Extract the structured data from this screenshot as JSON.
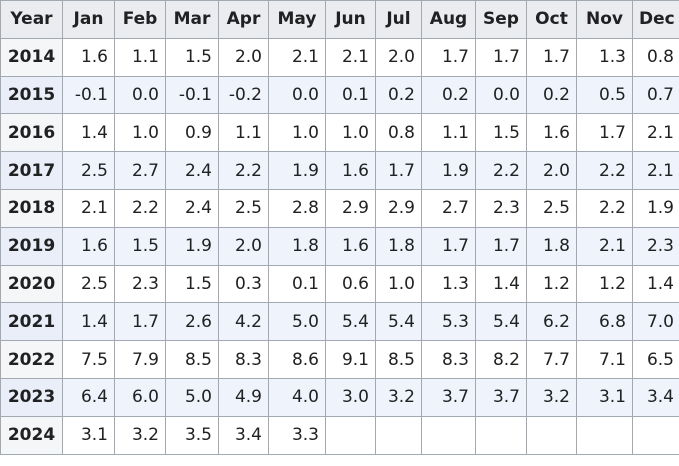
{
  "table": {
    "header": [
      "Year",
      "Jan",
      "Feb",
      "Mar",
      "Apr",
      "May",
      "Jun",
      "Jul",
      "Aug",
      "Sep",
      "Oct",
      "Nov",
      "Dec"
    ],
    "rows": [
      [
        "2014",
        "1.6",
        "1.1",
        "1.5",
        "2.0",
        "2.1",
        "2.1",
        "2.0",
        "1.7",
        "1.7",
        "1.7",
        "1.3",
        "0.8"
      ],
      [
        "2015",
        "-0.1",
        "0.0",
        "-0.1",
        "-0.2",
        "0.0",
        "0.1",
        "0.2",
        "0.2",
        "0.0",
        "0.2",
        "0.5",
        "0.7"
      ],
      [
        "2016",
        "1.4",
        "1.0",
        "0.9",
        "1.1",
        "1.0",
        "1.0",
        "0.8",
        "1.1",
        "1.5",
        "1.6",
        "1.7",
        "2.1"
      ],
      [
        "2017",
        "2.5",
        "2.7",
        "2.4",
        "2.2",
        "1.9",
        "1.6",
        "1.7",
        "1.9",
        "2.2",
        "2.0",
        "2.2",
        "2.1"
      ],
      [
        "2018",
        "2.1",
        "2.2",
        "2.4",
        "2.5",
        "2.8",
        "2.9",
        "2.9",
        "2.7",
        "2.3",
        "2.5",
        "2.2",
        "1.9"
      ],
      [
        "2019",
        "1.6",
        "1.5",
        "1.9",
        "2.0",
        "1.8",
        "1.6",
        "1.8",
        "1.7",
        "1.7",
        "1.8",
        "2.1",
        "2.3"
      ],
      [
        "2020",
        "2.5",
        "2.3",
        "1.5",
        "0.3",
        "0.1",
        "0.6",
        "1.0",
        "1.3",
        "1.4",
        "1.2",
        "1.2",
        "1.4"
      ],
      [
        "2021",
        "1.4",
        "1.7",
        "2.6",
        "4.2",
        "5.0",
        "5.4",
        "5.4",
        "5.3",
        "5.4",
        "6.2",
        "6.8",
        "7.0"
      ],
      [
        "2022",
        "7.5",
        "7.9",
        "8.5",
        "8.3",
        "8.6",
        "9.1",
        "8.5",
        "8.3",
        "8.2",
        "7.7",
        "7.1",
        "6.5"
      ],
      [
        "2023",
        "6.4",
        "6.0",
        "5.0",
        "4.9",
        "4.0",
        "3.0",
        "3.2",
        "3.7",
        "3.7",
        "3.2",
        "3.1",
        "3.4"
      ],
      [
        "2024",
        "3.1",
        "3.2",
        "3.5",
        "3.4",
        "3.3"
      ]
    ]
  }
}
